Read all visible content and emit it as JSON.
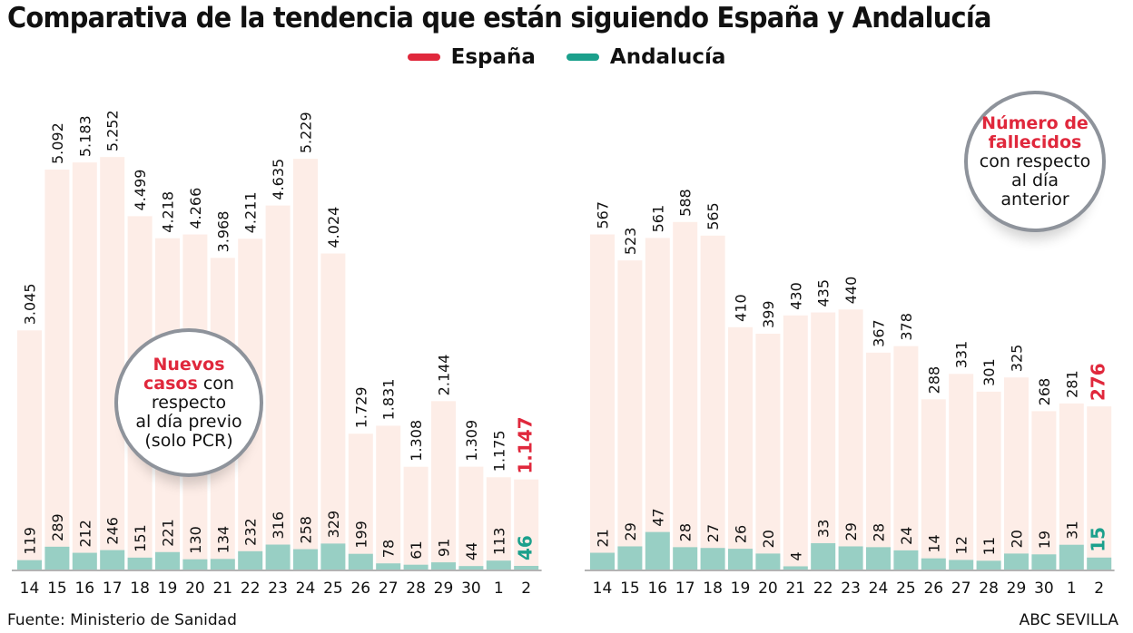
{
  "title": "Comparativa de la tendencia que están siguiendo España y Andalucía",
  "legend": [
    {
      "label": "España",
      "color": "#e0283c"
    },
    {
      "label": "Andalucía",
      "color": "#1ba08c"
    }
  ],
  "colors": {
    "spain_bar": "#fdede7",
    "andalucia_bar": "#98cfc4",
    "highlight_spain": "#e0283c",
    "highlight_andalucia": "#1ba08c",
    "axis": "#9a9a9a"
  },
  "source": "Fuente: Ministerio de Sanidad",
  "credit": "ABC SEVILLA",
  "bubbles": {
    "cases": {
      "highlight": "Nuevos casos",
      "hl1": "Nuevos",
      "hl2": "casos",
      "rest1": " con",
      "rest2": "respecto",
      "rest3": "al día previo",
      "rest4": "(solo PCR)"
    },
    "deaths": {
      "hl1": "Número de",
      "hl2": "fallecidos",
      "rest1": "con respecto",
      "rest2": "al día",
      "rest3": "anterior"
    }
  },
  "chart_data": [
    {
      "type": "bar",
      "title": "Nuevos casos con respecto al día previo (solo PCR)",
      "xlabel": "",
      "ylabel": "",
      "categories": [
        "14",
        "15",
        "16",
        "17",
        "18",
        "19",
        "20",
        "21",
        "22",
        "23",
        "24",
        "25",
        "26",
        "27",
        "28",
        "29",
        "30",
        "1",
        "2"
      ],
      "series": [
        {
          "name": "España",
          "values": [
            3045,
            5092,
            5183,
            5252,
            4499,
            4218,
            4266,
            3968,
            4211,
            4635,
            5229,
            4024,
            1729,
            1831,
            1308,
            2144,
            1309,
            1175,
            1147
          ],
          "labels": [
            "3.045",
            "5.092",
            "5.183",
            "5.252",
            "4.499",
            "4.218",
            "4.266",
            "3.968",
            "4.211",
            "4.635",
            "5.229",
            "4.024",
            "1.729",
            "1.831",
            "1.308",
            "2.144",
            "1.309",
            "1.175",
            "1.147"
          ]
        },
        {
          "name": "Andalucía",
          "values": [
            119,
            289,
            212,
            246,
            151,
            221,
            130,
            134,
            232,
            316,
            258,
            329,
            199,
            78,
            61,
            91,
            44,
            113,
            46
          ],
          "labels": [
            "119",
            "289",
            "212",
            "246",
            "151",
            "221",
            "130",
            "134",
            "232",
            "316",
            "258",
            "329",
            "199",
            "78",
            "61",
            "91",
            "44",
            "113",
            "46"
          ]
        }
      ],
      "ylim": [
        0,
        5300
      ],
      "grid": false,
      "legend_position": "top-center"
    },
    {
      "type": "bar",
      "title": "Número de fallecidos con respecto al día anterior",
      "xlabel": "",
      "ylabel": "",
      "categories": [
        "14",
        "15",
        "16",
        "17",
        "18",
        "19",
        "20",
        "21",
        "22",
        "23",
        "24",
        "25",
        "26",
        "27",
        "28",
        "29",
        "30",
        "1",
        "2"
      ],
      "series": [
        {
          "name": "España",
          "values": [
            567,
            523,
            561,
            588,
            565,
            410,
            399,
            430,
            435,
            440,
            367,
            378,
            288,
            331,
            301,
            325,
            268,
            281,
            276
          ],
          "labels": [
            "567",
            "523",
            "561",
            "588",
            "565",
            "410",
            "399",
            "430",
            "435",
            "440",
            "367",
            "378",
            "288",
            "331",
            "301",
            "325",
            "268",
            "281",
            "276"
          ]
        },
        {
          "name": "Andalucía",
          "values": [
            21,
            29,
            47,
            28,
            27,
            26,
            20,
            4,
            33,
            29,
            28,
            24,
            14,
            12,
            11,
            20,
            19,
            31,
            15
          ],
          "labels": [
            "21",
            "29",
            "47",
            "28",
            "27",
            "26",
            "20",
            "4",
            "33",
            "29",
            "28",
            "24",
            "14",
            "12",
            "11",
            "20",
            "19",
            "31",
            "15"
          ]
        }
      ],
      "ylim": [
        0,
        600
      ],
      "grid": false,
      "legend_position": "top-center"
    }
  ]
}
